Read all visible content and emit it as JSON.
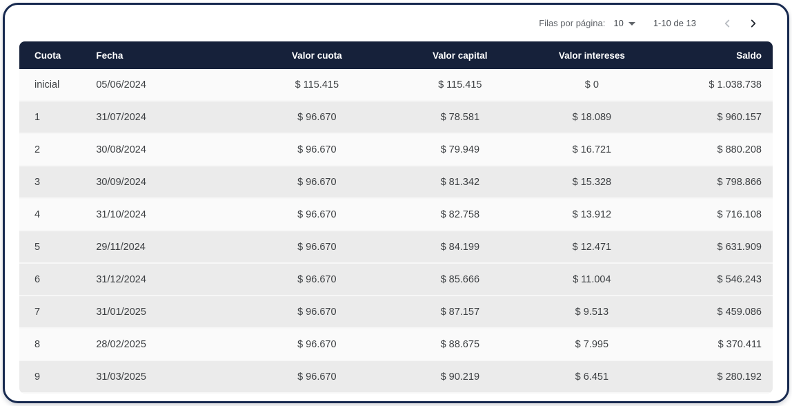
{
  "pagination": {
    "rows_per_page_label": "Filas por página:",
    "rows_per_page_value": "10",
    "rows_per_page_icon": "caret-down-icon",
    "range_label": "1-10 de 13",
    "prev_icon": "chevron-left-icon",
    "prev_enabled": false,
    "next_icon": "chevron-right-icon",
    "next_enabled": true
  },
  "table": {
    "columns": [
      {
        "label": "Cuota",
        "align": "left"
      },
      {
        "label": "Fecha",
        "align": "left"
      },
      {
        "label": "Valor cuota",
        "align": "center"
      },
      {
        "label": "Valor capital",
        "align": "center"
      },
      {
        "label": "Valor intereses",
        "align": "center"
      },
      {
        "label": "Saldo",
        "align": "right"
      }
    ],
    "rows": [
      {
        "shaded": false,
        "cells": [
          "inicial",
          "05/06/2024",
          "$ 115.415",
          "$ 115.415",
          "$ 0",
          "$ 1.038.738"
        ]
      },
      {
        "shaded": true,
        "cells": [
          "1",
          "31/07/2024",
          "$ 96.670",
          "$ 78.581",
          "$ 18.089",
          "$ 960.157"
        ]
      },
      {
        "shaded": false,
        "cells": [
          "2",
          "30/08/2024",
          "$ 96.670",
          "$ 79.949",
          "$ 16.721",
          "$ 880.208"
        ]
      },
      {
        "shaded": true,
        "cells": [
          "3",
          "30/09/2024",
          "$ 96.670",
          "$ 81.342",
          "$ 15.328",
          "$ 798.866"
        ]
      },
      {
        "shaded": false,
        "cells": [
          "4",
          "31/10/2024",
          "$ 96.670",
          "$ 82.758",
          "$ 13.912",
          "$ 716.108"
        ]
      },
      {
        "shaded": true,
        "cells": [
          "5",
          "29/11/2024",
          "$ 96.670",
          "$ 84.199",
          "$ 12.471",
          "$ 631.909"
        ]
      },
      {
        "shaded": true,
        "cells": [
          "6",
          "31/12/2024",
          "$ 96.670",
          "$ 85.666",
          "$ 11.004",
          "$ 546.243"
        ]
      },
      {
        "shaded": true,
        "cells": [
          "7",
          "31/01/2025",
          "$ 96.670",
          "$ 87.157",
          "$ 9.513",
          "$ 459.086"
        ]
      },
      {
        "shaded": false,
        "cells": [
          "8",
          "28/02/2025",
          "$ 96.670",
          "$ 88.675",
          "$ 7.995",
          "$ 370.411"
        ]
      },
      {
        "shaded": true,
        "cells": [
          "9",
          "31/03/2025",
          "$ 96.670",
          "$ 90.219",
          "$ 6.451",
          "$ 280.192"
        ]
      }
    ]
  },
  "colors": {
    "header_bg": "#16213a",
    "card_border": "#182a50",
    "row_shaded": "#ebebeb",
    "row_plain": "#fafafa",
    "header_text": "#ffffff",
    "cell_text": "#3d4043",
    "muted_text": "#5f6368",
    "chevron_disabled": "#b9bdc3",
    "chevron_enabled": "#222831"
  }
}
